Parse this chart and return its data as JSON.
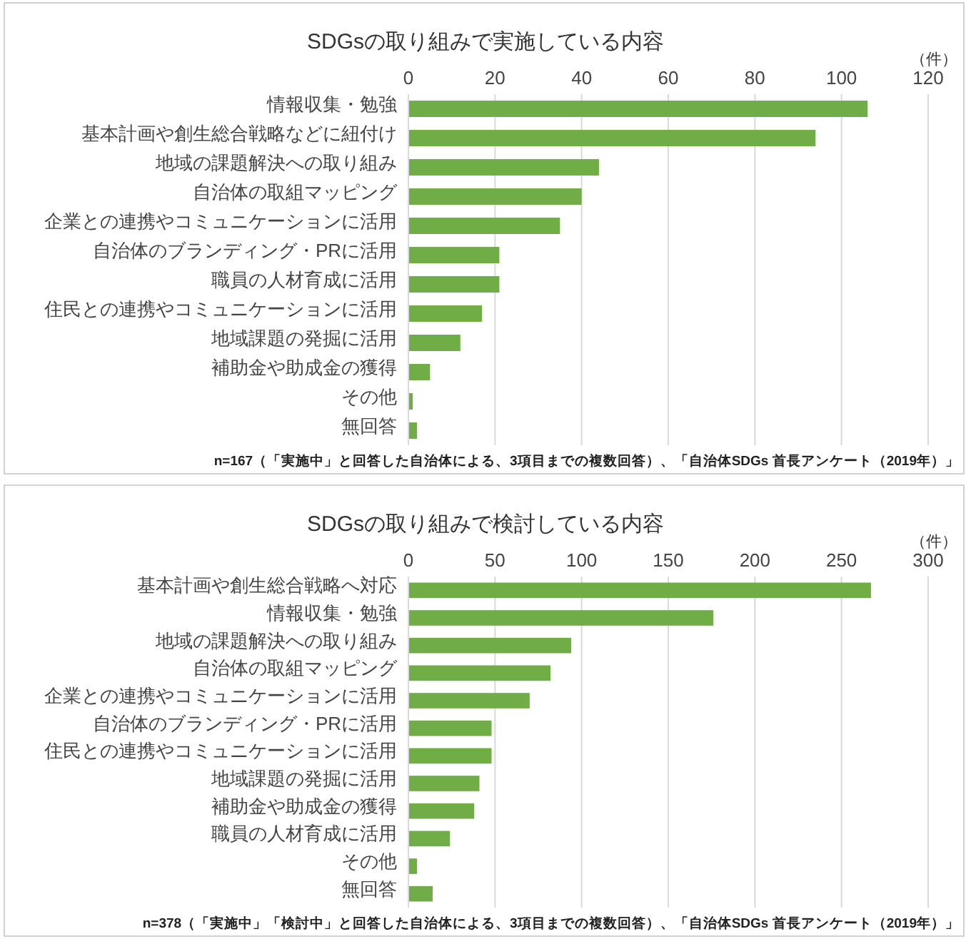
{
  "chart_data": [
    {
      "type": "bar",
      "orientation": "horizontal",
      "title": "SDGsの取り組みで実施している内容",
      "xlabel": "（件）",
      "categories": [
        "情報収集・勉強",
        "基本計画や創生総合戦略などに紐付け",
        "地域の課題解決への取り組み",
        "自治体の取組マッピング",
        "企業との連携やコミュニケーションに活用",
        "自治体のブランディング・PRに活用",
        "職員の人材育成に活用",
        "住民との連携やコミュニケーションに活用",
        "地域課題の発掘に活用",
        "補助金や助成金の獲得",
        "その他",
        "無回答"
      ],
      "values": [
        106,
        94,
        44,
        40,
        35,
        21,
        21,
        17,
        12,
        5,
        1,
        2
      ],
      "color": "#70ad47",
      "xlim": [
        0,
        120
      ],
      "xticks": [
        0,
        20,
        40,
        60,
        80,
        100,
        120
      ],
      "grid": "x",
      "annotations": [
        "n=167（「実施中」と回答した自治体による、3項目までの複数回答）、「自治体SDGs 首長アンケート（2019年）」"
      ]
    },
    {
      "type": "bar",
      "orientation": "horizontal",
      "title": "SDGsの取り組みで検討している内容",
      "xlabel": "（件）",
      "categories": [
        "基本計画や創生総合戦略へ対応",
        "情報収集・勉強",
        "地域の課題解決への取り組み",
        "自治体の取組マッピング",
        "企業との連携やコミュニケーションに活用",
        "自治体のブランディング・PRに活用",
        "住民との連携やコミュニケーションに活用",
        "地域課題の発掘に活用",
        "補助金や助成金の獲得",
        "職員の人材育成に活用",
        "その他",
        "無回答"
      ],
      "values": [
        267,
        176,
        94,
        82,
        70,
        48,
        48,
        41,
        38,
        24,
        5,
        14
      ],
      "color": "#70ad47",
      "xlim": [
        0,
        300
      ],
      "xticks": [
        0,
        50,
        100,
        150,
        200,
        250,
        300
      ],
      "grid": "x",
      "annotations": [
        "n=378（「実施中」「検討中」と回答した自治体による、3項目までの複数回答）、「自治体SDGs 首長アンケート（2019年）」"
      ]
    }
  ]
}
